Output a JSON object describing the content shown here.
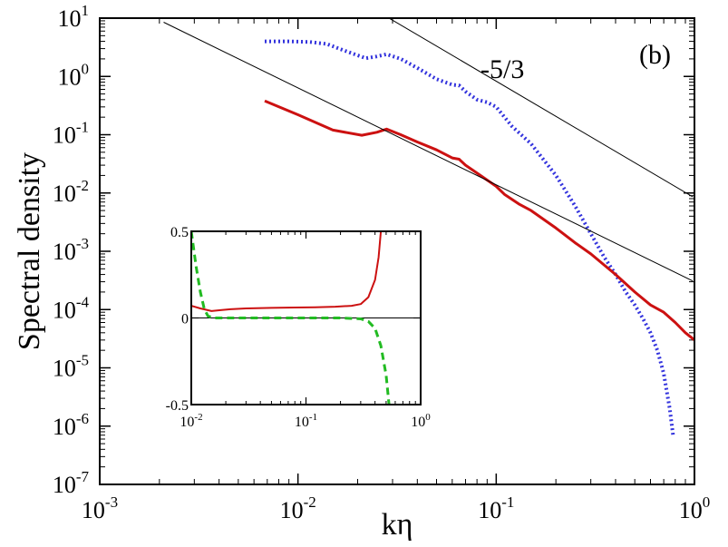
{
  "chart_data": {
    "type": "line",
    "scale": "log-log",
    "title": "",
    "xlabel": "kη",
    "ylabel": "Spectral density",
    "xlim": [
      0.001,
      1
    ],
    "ylim": [
      1e-07,
      10
    ],
    "x_ticks": [
      {
        "value": 0.001,
        "base": "10",
        "exp": "-3"
      },
      {
        "value": 0.01,
        "base": "10",
        "exp": "-2"
      },
      {
        "value": 0.1,
        "base": "10",
        "exp": "-1"
      },
      {
        "value": 1,
        "base": "10",
        "exp": "0"
      }
    ],
    "y_ticks": [
      {
        "value": 1e-07,
        "base": "10",
        "exp": "-7"
      },
      {
        "value": 1e-06,
        "base": "10",
        "exp": "-6"
      },
      {
        "value": 1e-05,
        "base": "10",
        "exp": "-5"
      },
      {
        "value": 0.0001,
        "base": "10",
        "exp": "-4"
      },
      {
        "value": 0.001,
        "base": "10",
        "exp": "-3"
      },
      {
        "value": 0.01,
        "base": "10",
        "exp": "-2"
      },
      {
        "value": 0.1,
        "base": "10",
        "exp": "-1"
      },
      {
        "value": 1,
        "base": "10",
        "exp": "0"
      },
      {
        "value": 10,
        "base": "10",
        "exp": "1"
      }
    ],
    "panel_label": "(b)",
    "slope_annotation": "-5/3",
    "series": [
      {
        "name": "blue-dotted",
        "style": "dotted",
        "color": "#3333dd",
        "points": [
          [
            0.0068,
            4.0
          ],
          [
            0.009,
            4.0
          ],
          [
            0.0115,
            3.9
          ],
          [
            0.014,
            3.6
          ],
          [
            0.017,
            2.8
          ],
          [
            0.02,
            2.3
          ],
          [
            0.022,
            2.05
          ],
          [
            0.025,
            2.2
          ],
          [
            0.028,
            2.4
          ],
          [
            0.033,
            2.0
          ],
          [
            0.04,
            1.4
          ],
          [
            0.05,
            0.9
          ],
          [
            0.06,
            0.72
          ],
          [
            0.065,
            0.7
          ],
          [
            0.07,
            0.55
          ],
          [
            0.08,
            0.4
          ],
          [
            0.09,
            0.36
          ],
          [
            0.1,
            0.3
          ],
          [
            0.12,
            0.14
          ],
          [
            0.15,
            0.07
          ],
          [
            0.2,
            0.02
          ],
          [
            0.25,
            0.006
          ],
          [
            0.3,
            0.002
          ],
          [
            0.35,
            0.0008
          ],
          [
            0.4,
            0.0004
          ],
          [
            0.45,
            0.0002
          ],
          [
            0.5,
            0.00012
          ],
          [
            0.55,
            7e-05
          ],
          [
            0.6,
            4e-05
          ],
          [
            0.65,
            2e-05
          ],
          [
            0.7,
            8e-06
          ],
          [
            0.75,
            2e-06
          ],
          [
            0.78,
            7e-07
          ]
        ]
      },
      {
        "name": "red-solid",
        "style": "solid",
        "color": "#cc1111",
        "points": [
          [
            0.0068,
            0.38
          ],
          [
            0.01,
            0.22
          ],
          [
            0.015,
            0.12
          ],
          [
            0.021,
            0.098
          ],
          [
            0.025,
            0.11
          ],
          [
            0.028,
            0.125
          ],
          [
            0.033,
            0.1
          ],
          [
            0.04,
            0.075
          ],
          [
            0.05,
            0.055
          ],
          [
            0.06,
            0.04
          ],
          [
            0.065,
            0.038
          ],
          [
            0.07,
            0.03
          ],
          [
            0.08,
            0.022
          ],
          [
            0.1,
            0.013
          ],
          [
            0.11,
            0.0095
          ],
          [
            0.13,
            0.0065
          ],
          [
            0.15,
            0.005
          ],
          [
            0.2,
            0.0025
          ],
          [
            0.25,
            0.0014
          ],
          [
            0.3,
            0.0009
          ],
          [
            0.4,
            0.0004
          ],
          [
            0.5,
            0.0002
          ],
          [
            0.6,
            0.00012
          ],
          [
            0.7,
            9e-05
          ],
          [
            0.8,
            6e-05
          ],
          [
            0.9,
            4e-05
          ],
          [
            1.0,
            3e-05
          ]
        ]
      },
      {
        "name": "reference-upper",
        "style": "thin",
        "color": "#000000",
        "points": [
          [
            0.028,
            10.6
          ],
          [
            0.98,
            0.0086
          ]
        ]
      },
      {
        "name": "reference-lower",
        "style": "thin",
        "color": "#000000",
        "points": [
          [
            0.0021,
            8.5
          ],
          [
            0.98,
            0.00031
          ]
        ]
      }
    ],
    "inset": {
      "type": "line",
      "scale": "log-x",
      "xlim": [
        0.01,
        1
      ],
      "ylim": [
        -0.5,
        0.5
      ],
      "x_ticks": [
        {
          "value": 0.01,
          "base": "10",
          "exp": "-2"
        },
        {
          "value": 0.1,
          "base": "10",
          "exp": "-1"
        },
        {
          "value": 1,
          "base": "10",
          "exp": "0"
        }
      ],
      "y_ticks": [
        {
          "value": 0.5,
          "label": "0.5"
        },
        {
          "value": 0,
          "label": "0"
        },
        {
          "value": -0.5,
          "label": "-0.5"
        }
      ],
      "zero_line": true,
      "series": [
        {
          "name": "inset-red-solid",
          "style": "solid",
          "color": "#cc1111",
          "points": [
            [
              0.01,
              0.07
            ],
            [
              0.012,
              0.055
            ],
            [
              0.015,
              0.04
            ],
            [
              0.018,
              0.045
            ],
            [
              0.022,
              0.05
            ],
            [
              0.03,
              0.055
            ],
            [
              0.05,
              0.058
            ],
            [
              0.08,
              0.06
            ],
            [
              0.12,
              0.062
            ],
            [
              0.18,
              0.065
            ],
            [
              0.25,
              0.07
            ],
            [
              0.3,
              0.08
            ],
            [
              0.35,
              0.12
            ],
            [
              0.4,
              0.22
            ],
            [
              0.43,
              0.35
            ],
            [
              0.45,
              0.5
            ]
          ]
        },
        {
          "name": "inset-green-dashed",
          "style": "dashed",
          "color": "#22bb22",
          "points": [
            [
              0.01,
              0.5
            ],
            [
              0.011,
              0.3
            ],
            [
              0.012,
              0.15
            ],
            [
              0.013,
              0.05
            ],
            [
              0.014,
              0.01
            ],
            [
              0.016,
              0.0
            ],
            [
              0.05,
              0.0
            ],
            [
              0.1,
              0.0
            ],
            [
              0.2,
              0.0
            ],
            [
              0.3,
              -0.005
            ],
            [
              0.35,
              -0.02
            ],
            [
              0.4,
              -0.06
            ],
            [
              0.45,
              -0.16
            ],
            [
              0.5,
              -0.33
            ],
            [
              0.53,
              -0.5
            ]
          ]
        }
      ]
    }
  }
}
